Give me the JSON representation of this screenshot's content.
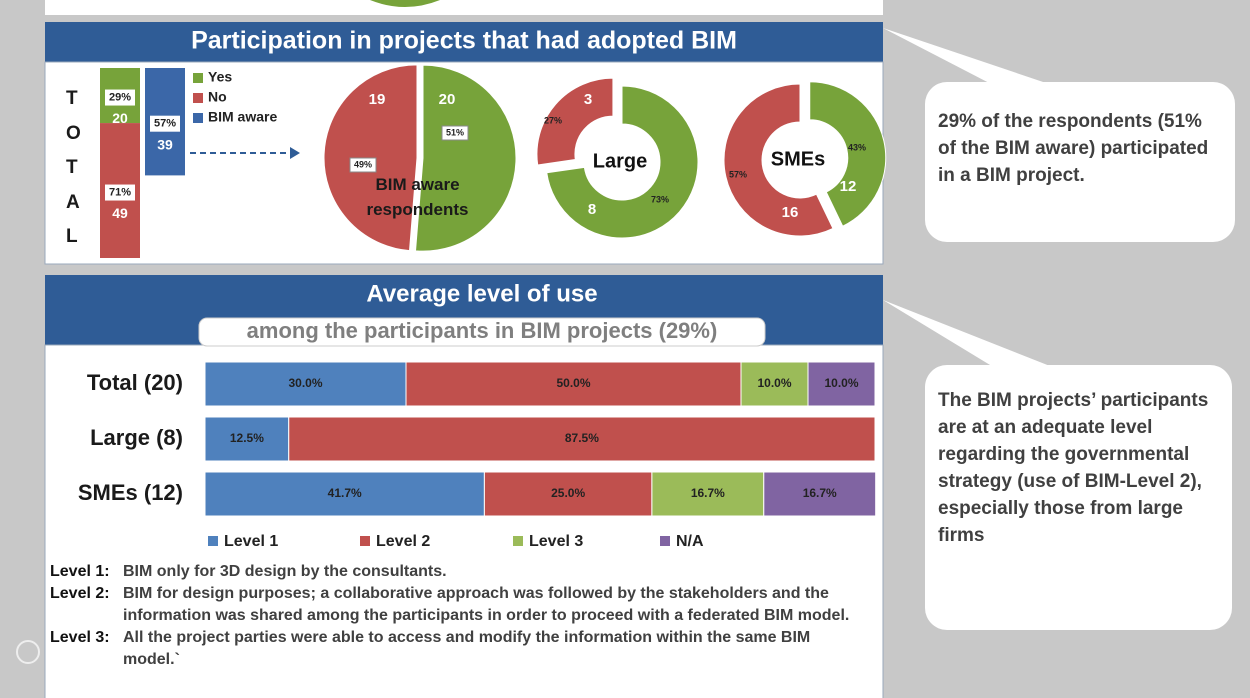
{
  "header_1": "Participation in projects that had adopted BIM",
  "chart_data": [
    {
      "type": "stacked_column",
      "label": "TOTAL",
      "bars": [
        {
          "segments": [
            {
              "name": "Yes",
              "color": "#77a33a",
              "value": 20,
              "percent_label": "29%"
            },
            {
              "name": "No",
              "color": "#c0504d",
              "value": 49,
              "percent_label": "71%"
            }
          ]
        },
        {
          "segments": [
            {
              "name": "BIM aware",
              "color": "#3b67a8",
              "value": 39,
              "percent_label": "57%"
            }
          ]
        }
      ]
    },
    {
      "type": "pie",
      "label": "BIM aware respondents",
      "values": [
        20,
        19
      ],
      "colors": [
        "#77a33a",
        "#c0504d"
      ],
      "percent_labels": [
        "51%",
        "49%"
      ]
    },
    {
      "type": "donut",
      "label": "Large",
      "values": [
        8,
        3
      ],
      "colors": [
        "#77a33a",
        "#c0504d"
      ],
      "percent_labels": [
        "73%",
        "27%"
      ]
    },
    {
      "type": "donut",
      "label": "SMEs",
      "values": [
        12,
        16
      ],
      "colors": [
        "#77a33a",
        "#c0504d"
      ],
      "percent_labels": [
        "43%",
        "57%"
      ]
    },
    {
      "type": "stacked_barh",
      "categories": [
        "Total (20)",
        "Large (8)",
        "SMEs (12)"
      ],
      "xlim": [
        0,
        100
      ],
      "series": [
        {
          "name": "Level 1",
          "color": "#4f81bd",
          "values": [
            30,
            12.5,
            41.7
          ],
          "value_labels": [
            "30.0%",
            "12.5%",
            "41.7%"
          ]
        },
        {
          "name": "Level 2",
          "color": "#c0504d",
          "values": [
            50,
            87.5,
            25
          ],
          "value_labels": [
            "50.0%",
            "87.5%",
            "25.0%"
          ]
        },
        {
          "name": "Level 3",
          "color": "#9bbb59",
          "values": [
            10,
            0,
            16.7
          ],
          "value_labels": [
            "10.0%",
            null,
            "16.7%"
          ]
        },
        {
          "name": "N/A",
          "color": "#8064a2",
          "values": [
            10,
            0,
            16.7
          ],
          "value_labels": [
            "10.0%",
            null,
            "16.7%"
          ]
        }
      ]
    }
  ],
  "header_2": {
    "title": "Average level of use",
    "subtitle": "among the participants in BIM projects (29%)"
  },
  "definitions": [
    {
      "term": "Level 1:",
      "text": "BIM only for 3D design by the consultants."
    },
    {
      "term": "Level 2:",
      "text": "BIM for design purposes; a collaborative approach was followed by the stakeholders and the information was shared among the participants in order to proceed with a federated BIM model."
    },
    {
      "term": "Level 3:",
      "text": "All the project parties were able to access and modify the information within the same BIM model.`"
    }
  ],
  "callouts": [
    "29% of the respondents (51% of the BIM aware) participated in a BIM project.",
    "The BIM projects’ participants are at an adequate level regarding the governmental strategy (use of BIM-Level 2), especially those from large firms"
  ]
}
